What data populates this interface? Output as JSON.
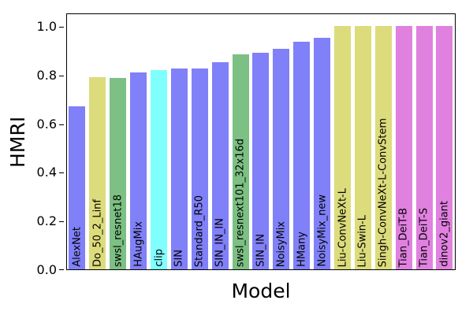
{
  "chart_data": {
    "type": "bar",
    "title": "",
    "xlabel": "Model",
    "ylabel": "HMRI",
    "ylim": [
      0,
      1.05
    ],
    "grid": false,
    "legend": null,
    "ytick_labels": [
      "0.0",
      "0.2",
      "0.4",
      "0.6",
      "0.8",
      "1.0"
    ],
    "categories": [
      "AlexNet",
      "Do_50_2_Linf",
      "swsl_resnet18",
      "HAugMix",
      "clip",
      "SIN",
      "Standard_R50",
      "SIN_IN_IN",
      "swsl_resnext101_32x16d",
      "SIN_IN",
      "NoisyMix",
      "HMany",
      "NoisyMix_new",
      "Liu-ConvNeXt-L",
      "Liu-Swin-L",
      "Singh-ConvNeXt-L-ConvStem",
      "Tian_DeiT-B",
      "Tian_DeiT-S",
      "dinov2_giant"
    ],
    "values": [
      0.67,
      0.79,
      0.785,
      0.81,
      0.82,
      0.825,
      0.825,
      0.85,
      0.885,
      0.89,
      0.905,
      0.935,
      0.95,
      1.0,
      1.0,
      1.0,
      1.0,
      1.0,
      1.0
    ],
    "colors": [
      "#8080f8",
      "#dcdc7c",
      "#7cc083",
      "#8080f8",
      "#80ffff",
      "#8080f8",
      "#8080f8",
      "#8080f8",
      "#7cc083",
      "#8080f8",
      "#8080f8",
      "#8080f8",
      "#8080f8",
      "#dcdc7c",
      "#dcdc7c",
      "#dcdc7c",
      "#e081e0",
      "#e081e0",
      "#e081e0"
    ],
    "bar_label_rotation_deg": 90,
    "bar_label_position": "inside-bottom"
  }
}
